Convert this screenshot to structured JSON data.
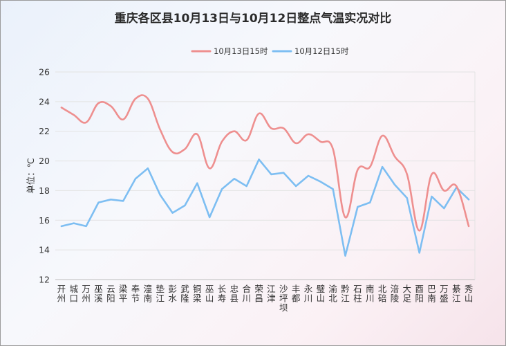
{
  "chart_data": {
    "type": "line",
    "title": "重庆各区县10月13日与10月12日整点气温实况对比",
    "ylabel": "单位：℃",
    "ylim": [
      12,
      26
    ],
    "yticks": [
      12,
      14,
      16,
      18,
      20,
      22,
      24,
      26
    ],
    "grid": true,
    "legend_position": "top-center",
    "categories": [
      "开州",
      "城口",
      "万州",
      "巫溪",
      "云阳",
      "梁平",
      "奉节",
      "潼南",
      "垫江",
      "彭水",
      "武隆",
      "铜梁",
      "巫山",
      "长寿",
      "忠县",
      "合川",
      "荣昌",
      "江津",
      "沙坪坝",
      "丰都",
      "永川",
      "璧山",
      "渝北",
      "黔江",
      "石柱",
      "南川",
      "北碚",
      "涪陵",
      "大足",
      "酉阳",
      "巴南",
      "万盛",
      "綦江",
      "秀山"
    ],
    "series": [
      {
        "name": "10月13日15时",
        "color": "#ee8f8f",
        "values": [
          23.6,
          23.1,
          22.6,
          23.9,
          23.7,
          22.8,
          24.2,
          24.2,
          22.1,
          20.6,
          20.8,
          21.8,
          19.5,
          21.3,
          22.0,
          21.4,
          23.2,
          22.2,
          22.2,
          21.2,
          21.8,
          21.3,
          20.8,
          16.2,
          19.4,
          19.6,
          21.7,
          20.3,
          19.1,
          15.3,
          19.1,
          18.0,
          18.3,
          15.6
        ]
      },
      {
        "name": "10月12日15时",
        "color": "#7dbef2",
        "values": [
          15.6,
          15.8,
          15.6,
          17.2,
          17.4,
          17.3,
          18.8,
          19.5,
          17.7,
          16.5,
          17.0,
          18.5,
          16.2,
          18.1,
          18.8,
          18.3,
          20.1,
          19.1,
          19.2,
          18.3,
          19.0,
          18.6,
          18.1,
          13.6,
          16.9,
          17.2,
          19.6,
          18.4,
          17.5,
          13.8,
          17.6,
          16.8,
          18.2,
          17.4
        ]
      }
    ]
  }
}
